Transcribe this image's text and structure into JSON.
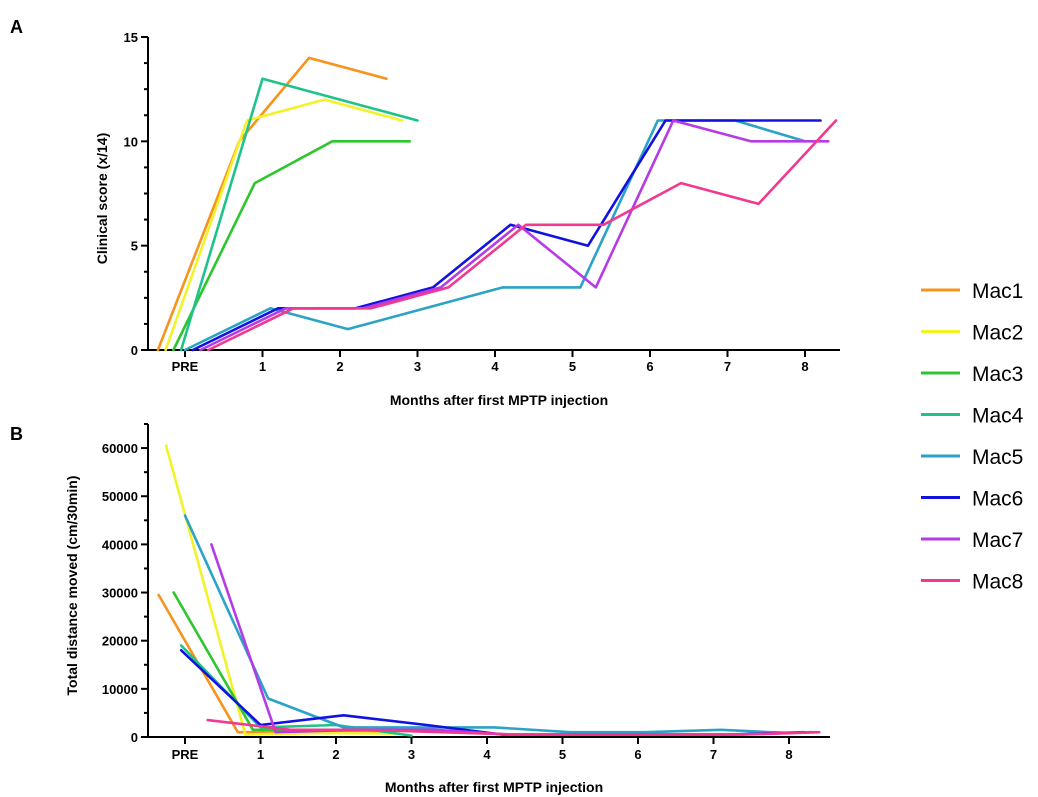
{
  "chart_data": [
    {
      "panel": "A",
      "type": "line",
      "title": "",
      "xlabel": "Months after first MPTP injection",
      "ylabel": "Clinical score (x/14)",
      "x_ticks": [
        "PRE",
        "1",
        "2",
        "3",
        "4",
        "5",
        "6",
        "7",
        "8"
      ],
      "y_ticks": [
        "0",
        "5",
        "10",
        "15"
      ],
      "ylim": [
        0,
        15
      ],
      "legend": "right",
      "series": [
        {
          "name": "Mac1",
          "color": "#F7941D",
          "x": [
            -0.35,
            0.7,
            1.6,
            2.6
          ],
          "y": [
            0,
            10,
            14,
            13
          ]
        },
        {
          "name": "Mac2",
          "color": "#F2F22A",
          "x": [
            -0.25,
            0.8,
            1.8,
            2.8
          ],
          "y": [
            0,
            11,
            12,
            11
          ]
        },
        {
          "name": "Mac3",
          "color": "#2DC62D",
          "x": [
            -0.15,
            0.9,
            1.9,
            2.9
          ],
          "y": [
            0,
            8,
            10,
            10
          ]
        },
        {
          "name": "Mac4",
          "color": "#1FC38A",
          "x": [
            -0.05,
            1.0,
            2.0,
            3.0
          ],
          "y": [
            0,
            13,
            12,
            11
          ]
        },
        {
          "name": "Mac5",
          "color": "#2BA3C6",
          "x": [
            0.0,
            1.1,
            2.1,
            3.1,
            4.1,
            5.1,
            6.1,
            7.1,
            8.0
          ],
          "y": [
            0,
            2,
            1,
            2,
            3,
            3,
            11,
            11,
            10
          ]
        },
        {
          "name": "Mac6",
          "color": "#1212E0",
          "x": [
            0.1,
            1.2,
            2.2,
            3.2,
            4.2,
            5.2,
            6.2,
            7.2,
            8.2
          ],
          "y": [
            0,
            2,
            2,
            3,
            6,
            5,
            11,
            11,
            11
          ]
        },
        {
          "name": "Mac7",
          "color": "#B43BE6",
          "x": [
            0.2,
            1.3,
            2.3,
            3.3,
            4.3,
            5.3,
            6.3,
            7.3,
            8.3
          ],
          "y": [
            0,
            2,
            2,
            3,
            6,
            3,
            11,
            10,
            10
          ]
        },
        {
          "name": "Mac8",
          "color": "#F0398F",
          "x": [
            0.3,
            1.4,
            2.4,
            3.4,
            4.4,
            5.4,
            6.4,
            7.4,
            8.4
          ],
          "y": [
            0,
            2,
            2,
            3,
            6,
            6,
            8,
            7,
            11
          ]
        }
      ]
    },
    {
      "panel": "B",
      "type": "line",
      "title": "",
      "xlabel": "Months after first MPTP injection",
      "ylabel": "Total distance moved (cm/30min)",
      "x_ticks": [
        "PRE",
        "1",
        "2",
        "3",
        "4",
        "5",
        "6",
        "7",
        "8"
      ],
      "y_ticks": [
        "0",
        "10000",
        "20000",
        "30000",
        "40000",
        "50000",
        "60000"
      ],
      "ylim": [
        0,
        65000
      ],
      "legend": "right",
      "series": [
        {
          "name": "Mac1",
          "color": "#F7941D",
          "x": [
            -0.35,
            0.7,
            1.6,
            2.6
          ],
          "y": [
            29500,
            1000,
            1000,
            1000
          ]
        },
        {
          "name": "Mac2",
          "color": "#F2F22A",
          "x": [
            -0.25,
            0.8,
            1.8,
            2.8
          ],
          "y": [
            60500,
            500,
            800,
            700
          ]
        },
        {
          "name": "Mac3",
          "color": "#2DC62D",
          "x": [
            -0.15,
            0.9,
            1.9,
            2.9
          ],
          "y": [
            30000,
            1500,
            1500,
            1500
          ]
        },
        {
          "name": "Mac4",
          "color": "#1FC38A",
          "x": [
            -0.05,
            1.0,
            2.0,
            3.0
          ],
          "y": [
            19000,
            2000,
            2500,
            300
          ]
        },
        {
          "name": "Mac5",
          "color": "#2BA3C6",
          "x": [
            0.0,
            1.1,
            2.1,
            3.1,
            4.1,
            5.1,
            6.1,
            7.1,
            8.0
          ],
          "y": [
            46000,
            8000,
            2000,
            2000,
            2000,
            1000,
            1000,
            1500,
            800
          ]
        },
        {
          "name": "Mac6",
          "color": "#1212E0",
          "x": [
            -0.05,
            1.0,
            2.1,
            3.2,
            4.2,
            5.2,
            6.2,
            7.2,
            8.2
          ],
          "y": [
            18000,
            2500,
            4500,
            2500,
            500,
            500,
            500,
            500,
            1000
          ]
        },
        {
          "name": "Mac7",
          "color": "#B43BE6",
          "x": [
            0.35,
            1.2,
            2.3,
            3.3,
            4.3,
            5.3,
            6.3,
            7.3,
            8.3
          ],
          "y": [
            40000,
            1000,
            1500,
            1500,
            500,
            500,
            500,
            500,
            1000
          ]
        },
        {
          "name": "Mac8",
          "color": "#F0398F",
          "x": [
            0.3,
            1.4,
            2.4,
            3.4,
            4.4,
            5.4,
            6.4,
            7.4,
            8.4
          ],
          "y": [
            3500,
            1500,
            1500,
            1000,
            500,
            500,
            500,
            500,
            1000
          ]
        }
      ]
    }
  ]
}
